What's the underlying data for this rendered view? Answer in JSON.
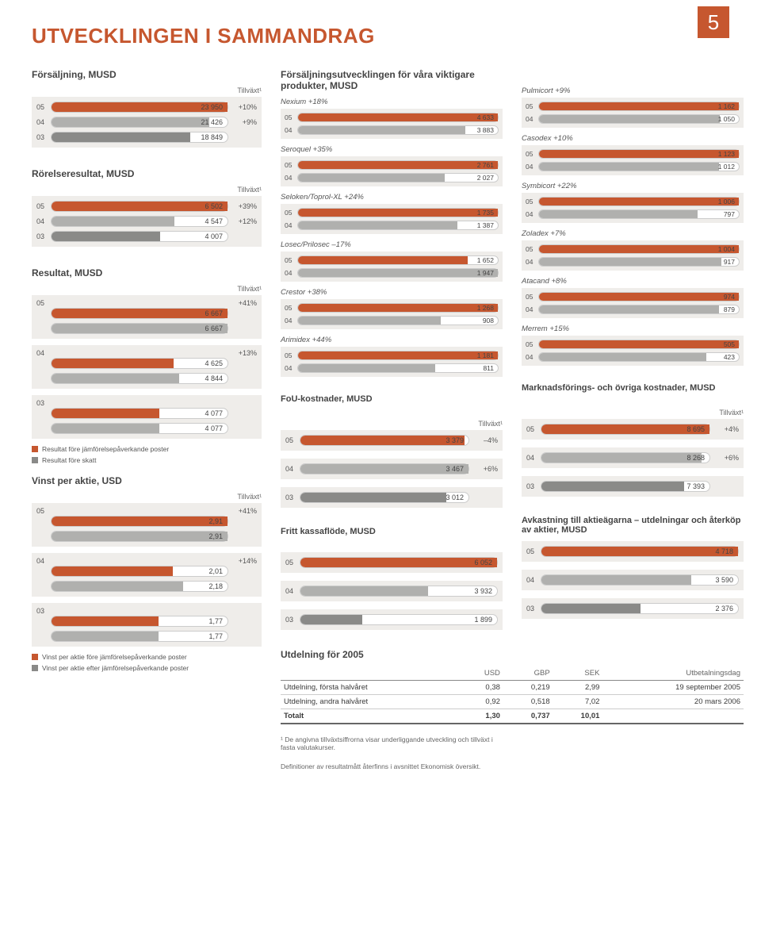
{
  "page_number": "5",
  "title": "UTVECKLINGEN I SAMMANDRAG",
  "colors": {
    "accent": "#c6572f",
    "bar05": "#c6572f",
    "bar04": "#b0b0ae",
    "bar03": "#8a8a88",
    "box_bg": "#efedea",
    "legend_sq1": "#c6572f",
    "legend_sq2": "#8a8a88"
  },
  "tillvaxt_label": "Tillväxt¹",
  "sales": {
    "title": "Försäljning, MUSD",
    "max": 23950,
    "rows": [
      {
        "year": "05",
        "value": "23 950",
        "num": 23950,
        "growth": "+10%",
        "color": "#c6572f"
      },
      {
        "year": "04",
        "value": "21 426",
        "num": 21426,
        "growth": "+9%",
        "color": "#b0b0ae"
      },
      {
        "year": "03",
        "value": "18 849",
        "num": 18849,
        "growth": "",
        "color": "#8a8a88"
      }
    ]
  },
  "operating": {
    "title": "Rörelseresultat, MUSD",
    "max": 6502,
    "rows": [
      {
        "year": "05",
        "value": "6 502",
        "num": 6502,
        "growth": "+39%",
        "color": "#c6572f"
      },
      {
        "year": "04",
        "value": "4 547",
        "num": 4547,
        "growth": "+12%",
        "color": "#b0b0ae"
      },
      {
        "year": "03",
        "value": "4 007",
        "num": 4007,
        "growth": "",
        "color": "#8a8a88"
      }
    ]
  },
  "result": {
    "title": "Resultat, MUSD",
    "max": 6667,
    "groups": [
      {
        "year": "05",
        "growth": "+41%",
        "rows": [
          {
            "value": "6 667",
            "num": 6667,
            "color": "#c6572f"
          },
          {
            "value": "6 667",
            "num": 6667,
            "color": "#b0b0ae"
          }
        ]
      },
      {
        "year": "04",
        "growth": "+13%",
        "rows": [
          {
            "value": "4 625",
            "num": 4625,
            "color": "#c6572f"
          },
          {
            "value": "4 844",
            "num": 4844,
            "color": "#b0b0ae"
          }
        ]
      },
      {
        "year": "03",
        "growth": "",
        "rows": [
          {
            "value": "4 077",
            "num": 4077,
            "color": "#c6572f"
          },
          {
            "value": "4 077",
            "num": 4077,
            "color": "#b0b0ae"
          }
        ]
      }
    ],
    "legend": [
      {
        "color": "#c6572f",
        "label": "Resultat före jämförelsepåverkande poster"
      },
      {
        "color": "#8a8a88",
        "label": "Resultat före skatt"
      }
    ]
  },
  "eps": {
    "title": "Vinst per aktie, USD",
    "max": 2.91,
    "groups": [
      {
        "year": "05",
        "growth": "+41%",
        "rows": [
          {
            "value": "2,91",
            "num": 2.91,
            "color": "#c6572f"
          },
          {
            "value": "2,91",
            "num": 2.91,
            "color": "#b0b0ae"
          }
        ]
      },
      {
        "year": "04",
        "growth": "+14%",
        "rows": [
          {
            "value": "2,01",
            "num": 2.01,
            "color": "#c6572f"
          },
          {
            "value": "2,18",
            "num": 2.18,
            "color": "#b0b0ae"
          }
        ]
      },
      {
        "year": "03",
        "growth": "",
        "rows": [
          {
            "value": "1,77",
            "num": 1.77,
            "color": "#c6572f"
          },
          {
            "value": "1,77",
            "num": 1.77,
            "color": "#b0b0ae"
          }
        ]
      }
    ],
    "legend": [
      {
        "color": "#c6572f",
        "label": "Vinst per aktie före jämförelsepåverkande poster"
      },
      {
        "color": "#8a8a88",
        "label": "Vinst per aktie efter jämförelsepåverkande poster"
      }
    ]
  },
  "products_title": "Försäljningsutvecklingen för våra viktigare produkter, MUSD",
  "products_left": [
    {
      "title": "Nexium +18%",
      "max": 4633,
      "rows": [
        {
          "year": "05",
          "value": "4 633",
          "num": 4633,
          "color": "#c6572f"
        },
        {
          "year": "04",
          "value": "3 883",
          "num": 3883,
          "color": "#b0b0ae"
        }
      ]
    },
    {
      "title": "Seroquel +35%",
      "max": 2761,
      "rows": [
        {
          "year": "05",
          "value": "2 761",
          "num": 2761,
          "color": "#c6572f"
        },
        {
          "year": "04",
          "value": "2 027",
          "num": 2027,
          "color": "#b0b0ae"
        }
      ]
    },
    {
      "title": "Seloken/Toprol-XL +24%",
      "max": 1735,
      "rows": [
        {
          "year": "05",
          "value": "1 735",
          "num": 1735,
          "color": "#c6572f"
        },
        {
          "year": "04",
          "value": "1 387",
          "num": 1387,
          "color": "#b0b0ae"
        }
      ]
    },
    {
      "title": "Losec/Prilosec –17%",
      "max": 1947,
      "rows": [
        {
          "year": "05",
          "value": "1 652",
          "num": 1652,
          "color": "#c6572f"
        },
        {
          "year": "04",
          "value": "1 947",
          "num": 1947,
          "color": "#b0b0ae"
        }
      ]
    },
    {
      "title": "Crestor +38%",
      "max": 1268,
      "rows": [
        {
          "year": "05",
          "value": "1 268",
          "num": 1268,
          "color": "#c6572f"
        },
        {
          "year": "04",
          "value": "908",
          "num": 908,
          "color": "#b0b0ae"
        }
      ]
    },
    {
      "title": "Arimidex +44%",
      "max": 1181,
      "rows": [
        {
          "year": "05",
          "value": "1 181",
          "num": 1181,
          "color": "#c6572f"
        },
        {
          "year": "04",
          "value": "811",
          "num": 811,
          "color": "#b0b0ae"
        }
      ]
    }
  ],
  "products_right": [
    {
      "title": "Pulmicort +9%",
      "max": 1162,
      "rows": [
        {
          "year": "05",
          "value": "1 162",
          "num": 1162,
          "color": "#c6572f"
        },
        {
          "year": "04",
          "value": "1 050",
          "num": 1050,
          "color": "#b0b0ae"
        }
      ]
    },
    {
      "title": "Casodex +10%",
      "max": 1123,
      "rows": [
        {
          "year": "05",
          "value": "1 123",
          "num": 1123,
          "color": "#c6572f"
        },
        {
          "year": "04",
          "value": "1 012",
          "num": 1012,
          "color": "#b0b0ae"
        }
      ]
    },
    {
      "title": "Symbicort +22%",
      "max": 1006,
      "rows": [
        {
          "year": "05",
          "value": "1 006",
          "num": 1006,
          "color": "#c6572f"
        },
        {
          "year": "04",
          "value": "797",
          "num": 797,
          "color": "#b0b0ae"
        }
      ]
    },
    {
      "title": "Zoladex +7%",
      "max": 1004,
      "rows": [
        {
          "year": "05",
          "value": "1 004",
          "num": 1004,
          "color": "#c6572f"
        },
        {
          "year": "04",
          "value": "917",
          "num": 917,
          "color": "#b0b0ae"
        }
      ]
    },
    {
      "title": "Atacand +8%",
      "max": 974,
      "rows": [
        {
          "year": "05",
          "value": "974",
          "num": 974,
          "color": "#c6572f"
        },
        {
          "year": "04",
          "value": "879",
          "num": 879,
          "color": "#b0b0ae"
        }
      ]
    },
    {
      "title": "Merrem +15%",
      "max": 505,
      "rows": [
        {
          "year": "05",
          "value": "505",
          "num": 505,
          "color": "#c6572f"
        },
        {
          "year": "04",
          "value": "423",
          "num": 423,
          "color": "#b0b0ae"
        }
      ]
    }
  ],
  "fou": {
    "title": "FoU-kostnader, MUSD",
    "max": 3467,
    "rows": [
      {
        "year": "05",
        "value": "3 379",
        "num": 3379,
        "growth": "–4%",
        "color": "#c6572f"
      },
      {
        "year": "04",
        "value": "3 467",
        "num": 3467,
        "growth": "+6%",
        "color": "#b0b0ae"
      },
      {
        "year": "03",
        "value": "3 012",
        "num": 3012,
        "growth": "",
        "color": "#8a8a88"
      }
    ]
  },
  "marketing": {
    "title": "Marknadsförings- och övriga kostnader, MUSD",
    "max": 8695,
    "rows": [
      {
        "year": "05",
        "value": "8 695",
        "num": 8695,
        "growth": "+4%",
        "color": "#c6572f"
      },
      {
        "year": "04",
        "value": "8 268",
        "num": 8268,
        "growth": "+6%",
        "color": "#b0b0ae"
      },
      {
        "year": "03",
        "value": "7 393",
        "num": 7393,
        "growth": "",
        "color": "#8a8a88"
      }
    ]
  },
  "cashflow": {
    "title": "Fritt kassaflöde, MUSD",
    "max": 6052,
    "rows": [
      {
        "year": "05",
        "value": "6 052",
        "num": 6052,
        "color": "#c6572f"
      },
      {
        "year": "04",
        "value": "3 932",
        "num": 3932,
        "color": "#b0b0ae"
      },
      {
        "year": "03",
        "value": "1 899",
        "num": 1899,
        "color": "#8a8a88"
      }
    ]
  },
  "returns": {
    "title": "Avkastning till aktieägarna – utdelningar och återköp av aktier, MUSD",
    "max": 4718,
    "rows": [
      {
        "year": "05",
        "value": "4 718",
        "num": 4718,
        "color": "#c6572f"
      },
      {
        "year": "04",
        "value": "3 590",
        "num": 3590,
        "color": "#b0b0ae"
      },
      {
        "year": "03",
        "value": "2 376",
        "num": 2376,
        "color": "#8a8a88"
      }
    ]
  },
  "dividend": {
    "title": "Utdelning för 2005",
    "headers": [
      "",
      "USD",
      "GBP",
      "SEK",
      "Utbetalningsdag"
    ],
    "rows": [
      [
        "Utdelning, första halvåret",
        "0,38",
        "0,219",
        "2,99",
        "19 september 2005"
      ],
      [
        "Utdelning, andra halvåret",
        "0,92",
        "0,518",
        "7,02",
        "20 mars 2006"
      ]
    ],
    "total": [
      "Totalt",
      "1,30",
      "0,737",
      "10,01",
      ""
    ]
  },
  "footnote1": "¹ De angivna tillväxtsiffrorna visar underliggande utveckling och tillväxt i fasta valutakurser.",
  "footnote2": "Definitioner av resultatmått återfinns i avsnittet Ekonomisk översikt."
}
